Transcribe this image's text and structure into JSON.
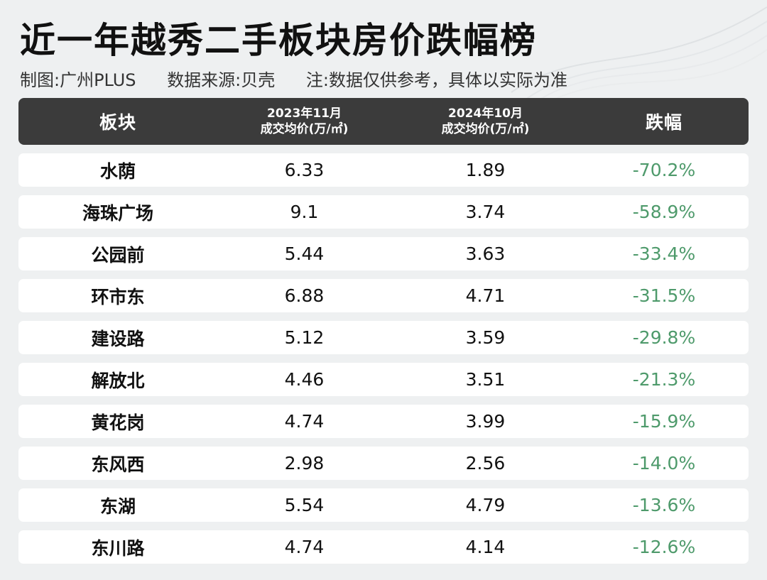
{
  "title": "近一年越秀二手板块房价跌幅榜",
  "subtitle": {
    "credit": "制图:广州PLUS",
    "source": "数据来源:贝壳",
    "note": "注:数据仅供参考，具体以实际为准"
  },
  "headers": {
    "area": "板块",
    "price_2023_line1": "2023年11月",
    "price_2023_line2": "成交均价(万/㎡)",
    "price_2024_line1": "2024年10月",
    "price_2024_line2": "成交均价(万/㎡)",
    "change": "跌幅"
  },
  "colors": {
    "header_bg": "#3b3b3b",
    "change_text": "#4e9a6b"
  },
  "chart_data": {
    "type": "table",
    "columns": [
      "板块",
      "2023年11月 成交均价(万/㎡)",
      "2024年10月 成交均价(万/㎡)",
      "跌幅"
    ],
    "rows": [
      {
        "area": "水荫",
        "price_2023": "6.33",
        "price_2024": "1.89",
        "change": "-70.2%"
      },
      {
        "area": "海珠广场",
        "price_2023": "9.1",
        "price_2024": "3.74",
        "change": "-58.9%"
      },
      {
        "area": "公园前",
        "price_2023": "5.44",
        "price_2024": "3.63",
        "change": "-33.4%"
      },
      {
        "area": "环市东",
        "price_2023": "6.88",
        "price_2024": "4.71",
        "change": "-31.5%"
      },
      {
        "area": "建设路",
        "price_2023": "5.12",
        "price_2024": "3.59",
        "change": "-29.8%"
      },
      {
        "area": "解放北",
        "price_2023": "4.46",
        "price_2024": "3.51",
        "change": "-21.3%"
      },
      {
        "area": "黄花岗",
        "price_2023": "4.74",
        "price_2024": "3.99",
        "change": "-15.9%"
      },
      {
        "area": "东风西",
        "price_2023": "2.98",
        "price_2024": "2.56",
        "change": "-14.0%"
      },
      {
        "area": "东湖",
        "price_2023": "5.54",
        "price_2024": "4.79",
        "change": "-13.6%"
      },
      {
        "area": "东川路",
        "price_2023": "4.74",
        "price_2024": "4.14",
        "change": "-12.6%"
      }
    ]
  }
}
